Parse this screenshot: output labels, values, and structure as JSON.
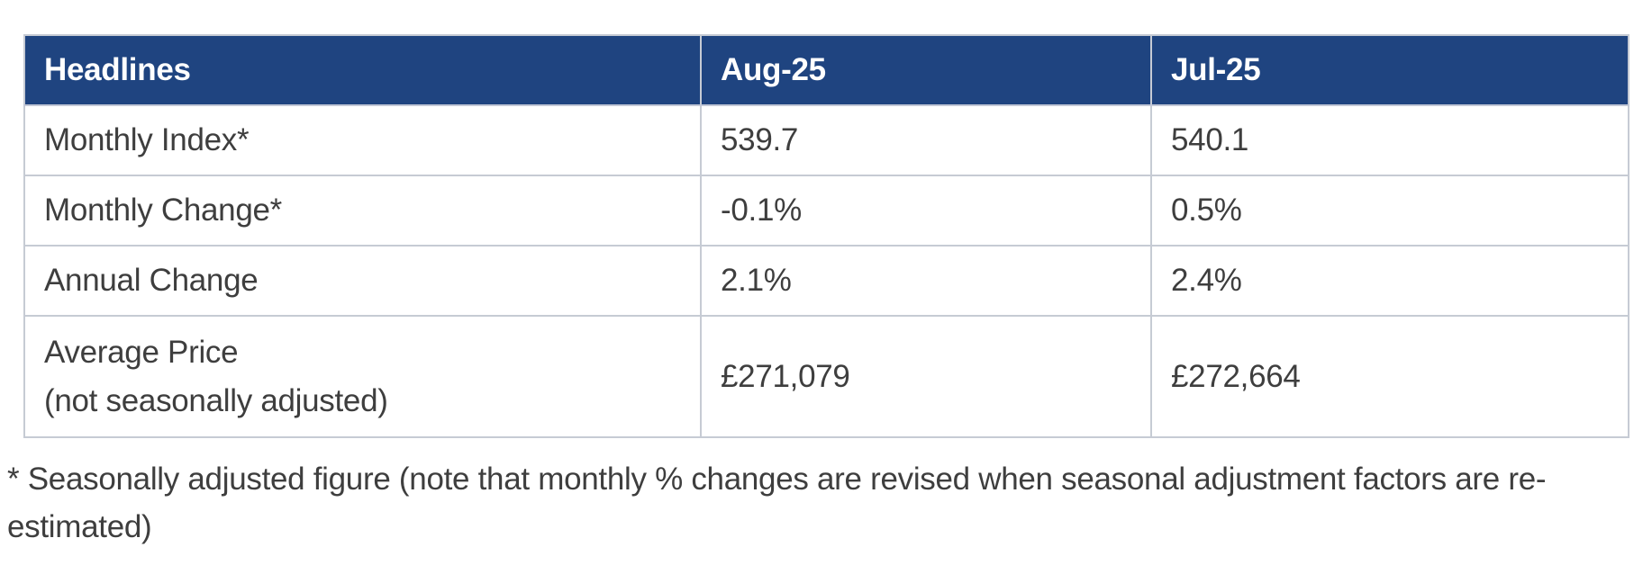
{
  "colors": {
    "header_background": "#1f4480",
    "header_text": "#ffffff",
    "alt_row_background": "#e4effb",
    "body_text": "#3e3e3e",
    "border": "#c6cbd4",
    "page_background": "#ffffff"
  },
  "table": {
    "columns": [
      "Headlines",
      "Aug-25",
      "Jul-25"
    ],
    "rows": [
      {
        "label": "Monthly Index*",
        "sublabel": "",
        "values": [
          "539.7",
          "540.1"
        ]
      },
      {
        "label": "Monthly Change*",
        "sublabel": "",
        "values": [
          "-0.1%",
          "0.5%"
        ]
      },
      {
        "label": "Annual Change",
        "sublabel": "",
        "values": [
          "2.1%",
          "2.4%"
        ]
      },
      {
        "label": "Average Price",
        "sublabel": "(not seasonally adjusted)",
        "values": [
          "£271,079",
          "£272,664"
        ]
      }
    ]
  },
  "footnote": {
    "line1": "* Seasonally adjusted figure (note that monthly % changes are revised when seasonal adjustment factors are re-",
    "line2": "estimated)"
  },
  "chart_data": {
    "type": "table",
    "title": "Headlines",
    "columns": [
      "Headlines",
      "Aug-25",
      "Jul-25"
    ],
    "rows": [
      [
        "Monthly Index*",
        "539.7",
        "540.1"
      ],
      [
        "Monthly Change*",
        "-0.1%",
        "0.5%"
      ],
      [
        "Annual Change",
        "2.1%",
        "2.4%"
      ],
      [
        "Average Price (not seasonally adjusted)",
        "£271,079",
        "£272,664"
      ]
    ],
    "annotations": [
      "* Seasonally adjusted figure (note that monthly % changes are revised when seasonal adjustment factors are re-estimated)"
    ]
  }
}
